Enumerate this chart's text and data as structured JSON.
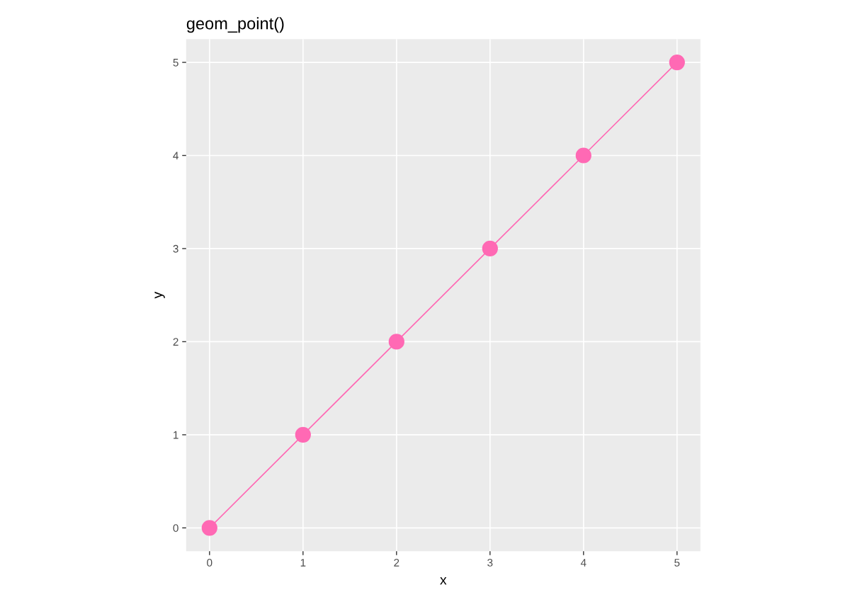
{
  "chart_data": {
    "type": "line",
    "title": "geom_point()",
    "xlabel": "x",
    "ylabel": "y",
    "x": [
      0,
      1,
      2,
      3,
      4,
      5
    ],
    "series": [
      {
        "color": "#ff69b4",
        "values": [
          0,
          1,
          2,
          3,
          4,
          5
        ]
      }
    ],
    "marker": "circle",
    "line_style": "solid",
    "xlim": [
      -0.25,
      5.25
    ],
    "ylim": [
      -0.25,
      5.25
    ],
    "xticks": [
      0,
      1,
      2,
      3,
      4,
      5
    ],
    "yticks": [
      0,
      1,
      2,
      3,
      4,
      5
    ],
    "grid": true,
    "legend": false
  }
}
